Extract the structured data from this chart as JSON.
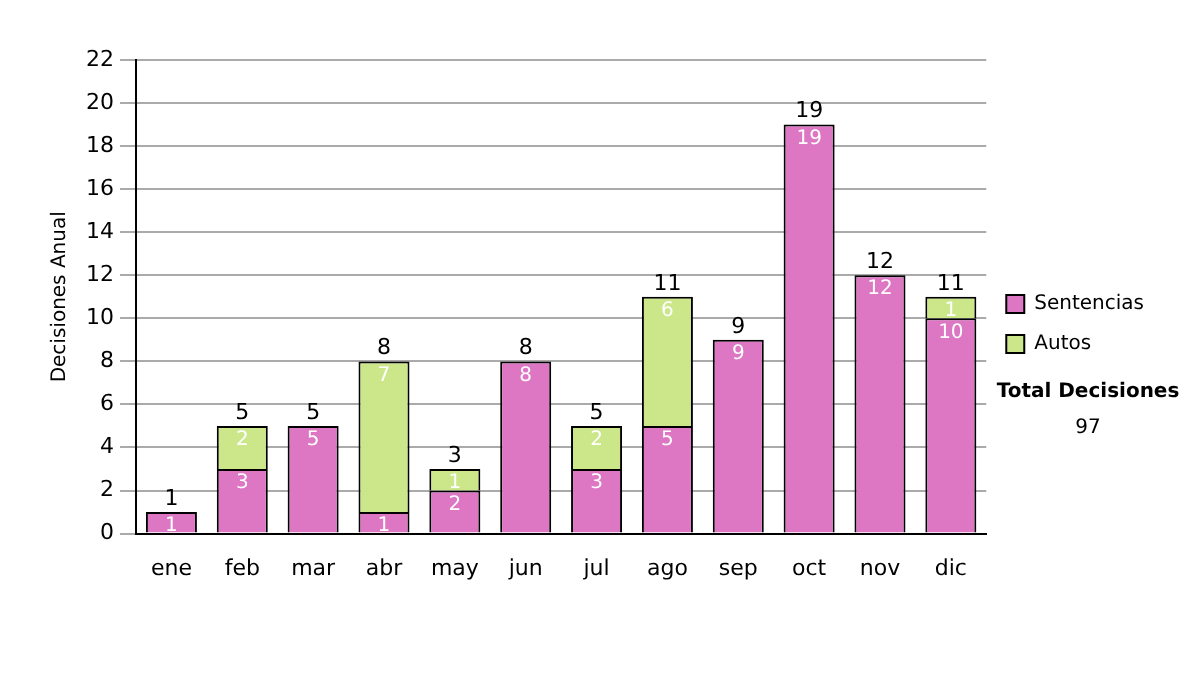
{
  "chart_data": {
    "type": "bar",
    "stacked": true,
    "ylabel": "Decisiones Anual",
    "categories": [
      "ene",
      "feb",
      "mar",
      "abr",
      "may",
      "jun",
      "jul",
      "ago",
      "sep",
      "oct",
      "nov",
      "dic"
    ],
    "series": [
      {
        "name": "Sentencias",
        "color": "#dd77c4",
        "values": [
          1,
          3,
          5,
          1,
          2,
          8,
          3,
          5,
          9,
          19,
          12,
          10
        ],
        "value_labels": [
          "1",
          "3",
          "5",
          "1",
          "2",
          "8",
          "3",
          "5",
          "9",
          "19",
          "12",
          "10"
        ]
      },
      {
        "name": "Autos",
        "color": "#cce68a",
        "values": [
          0,
          2,
          0,
          7,
          1,
          0,
          2,
          6,
          0,
          0,
          0,
          1
        ],
        "value_labels": [
          null,
          "2",
          null,
          "7",
          "1",
          null,
          "2",
          "6",
          null,
          null,
          null,
          "1"
        ]
      }
    ],
    "totals": [
      "1",
      "5",
      "5",
      "8",
      "3",
      "8",
      "5",
      "11",
      "9",
      "19",
      "12",
      "11"
    ],
    "ylim": [
      0,
      22
    ],
    "yticks": [
      0,
      2,
      4,
      6,
      8,
      10,
      12,
      14,
      16,
      18,
      20,
      22
    ],
    "grid": "y",
    "legend": "right",
    "annotations": [
      "Total Decisiones",
      "97"
    ]
  }
}
